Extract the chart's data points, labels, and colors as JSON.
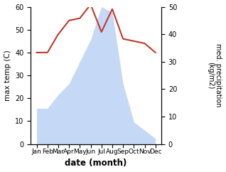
{
  "months": [
    "Jan",
    "Feb",
    "Mar",
    "Apr",
    "May",
    "Jun",
    "Jul",
    "Aug",
    "Sep",
    "Oct",
    "Nov",
    "Dec"
  ],
  "temperature": [
    40,
    40,
    48,
    54,
    55,
    61,
    49,
    59,
    46,
    45,
    44,
    40
  ],
  "precipitation": [
    13,
    13,
    18,
    22,
    30,
    38,
    50,
    48,
    22,
    8,
    5,
    2
  ],
  "temp_color": "#c0392b",
  "precip_fill_color": "#c5d8f5",
  "left_ylabel": "max temp (C)",
  "right_ylabel": "med. precipitation\n(kg/m2)",
  "xlabel": "date (month)",
  "ylim_left": [
    0,
    60
  ],
  "ylim_right": [
    0,
    50
  ],
  "left_yticks": [
    0,
    10,
    20,
    30,
    40,
    50,
    60
  ],
  "right_yticks": [
    0,
    10,
    20,
    30,
    40,
    50
  ],
  "background_color": "#ffffff"
}
